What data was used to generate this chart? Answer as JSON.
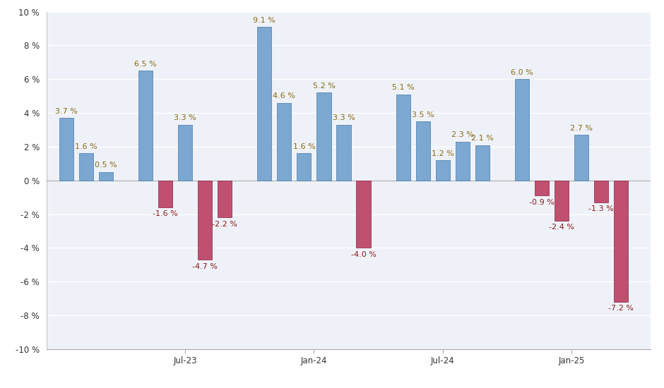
{
  "bars": [
    {
      "x": 1,
      "value": 3.7,
      "type": "blue"
    },
    {
      "x": 2,
      "value": 1.6,
      "type": "blue"
    },
    {
      "x": 3,
      "value": 0.5,
      "type": "blue"
    },
    {
      "x": 5,
      "value": 6.5,
      "type": "blue"
    },
    {
      "x": 6,
      "value": -1.6,
      "type": "red"
    },
    {
      "x": 7,
      "value": 3.3,
      "type": "blue"
    },
    {
      "x": 8,
      "value": -4.7,
      "type": "red"
    },
    {
      "x": 9,
      "value": -2.2,
      "type": "red"
    },
    {
      "x": 11,
      "value": 9.1,
      "type": "blue"
    },
    {
      "x": 12,
      "value": 4.6,
      "type": "blue"
    },
    {
      "x": 13,
      "value": 1.6,
      "type": "blue"
    },
    {
      "x": 14,
      "value": 5.2,
      "type": "blue"
    },
    {
      "x": 15,
      "value": 3.3,
      "type": "blue"
    },
    {
      "x": 16,
      "value": -4.0,
      "type": "red"
    },
    {
      "x": 18,
      "value": 5.1,
      "type": "blue"
    },
    {
      "x": 19,
      "value": 3.5,
      "type": "blue"
    },
    {
      "x": 20,
      "value": 1.2,
      "type": "blue"
    },
    {
      "x": 21,
      "value": 2.3,
      "type": "blue"
    },
    {
      "x": 22,
      "value": 2.1,
      "type": "blue"
    },
    {
      "x": 24,
      "value": 6.0,
      "type": "blue"
    },
    {
      "x": 25,
      "value": -0.9,
      "type": "red"
    },
    {
      "x": 26,
      "value": -2.4,
      "type": "red"
    },
    {
      "x": 27,
      "value": 2.7,
      "type": "blue"
    },
    {
      "x": 28,
      "value": -1.3,
      "type": "red"
    },
    {
      "x": 29,
      "value": -7.2,
      "type": "red"
    }
  ],
  "xtick_positions": [
    7,
    13.5,
    20,
    26.5
  ],
  "xtick_labels": [
    "Jul-23",
    "Jan-24",
    "Jul-24",
    "Jan-25"
  ],
  "ylim": [
    -10,
    10
  ],
  "yticks": [
    -10,
    -8,
    -6,
    -4,
    -2,
    0,
    2,
    4,
    6,
    8,
    10
  ],
  "background_color": "#FFFFFF",
  "plot_bg_color": "#EEF2F8",
  "grid_color": "#FFFFFF",
  "bar_width": 0.72,
  "label_fontsize": 8.0,
  "label_color_blue": "#8B6914",
  "label_color_red": "#8B1A1A",
  "blue_color": "#7BA7D0",
  "blue_edge": "#4A7AAA",
  "red_color": "#C05070",
  "red_edge": "#8B2040",
  "xlim": [
    0,
    30.5
  ]
}
